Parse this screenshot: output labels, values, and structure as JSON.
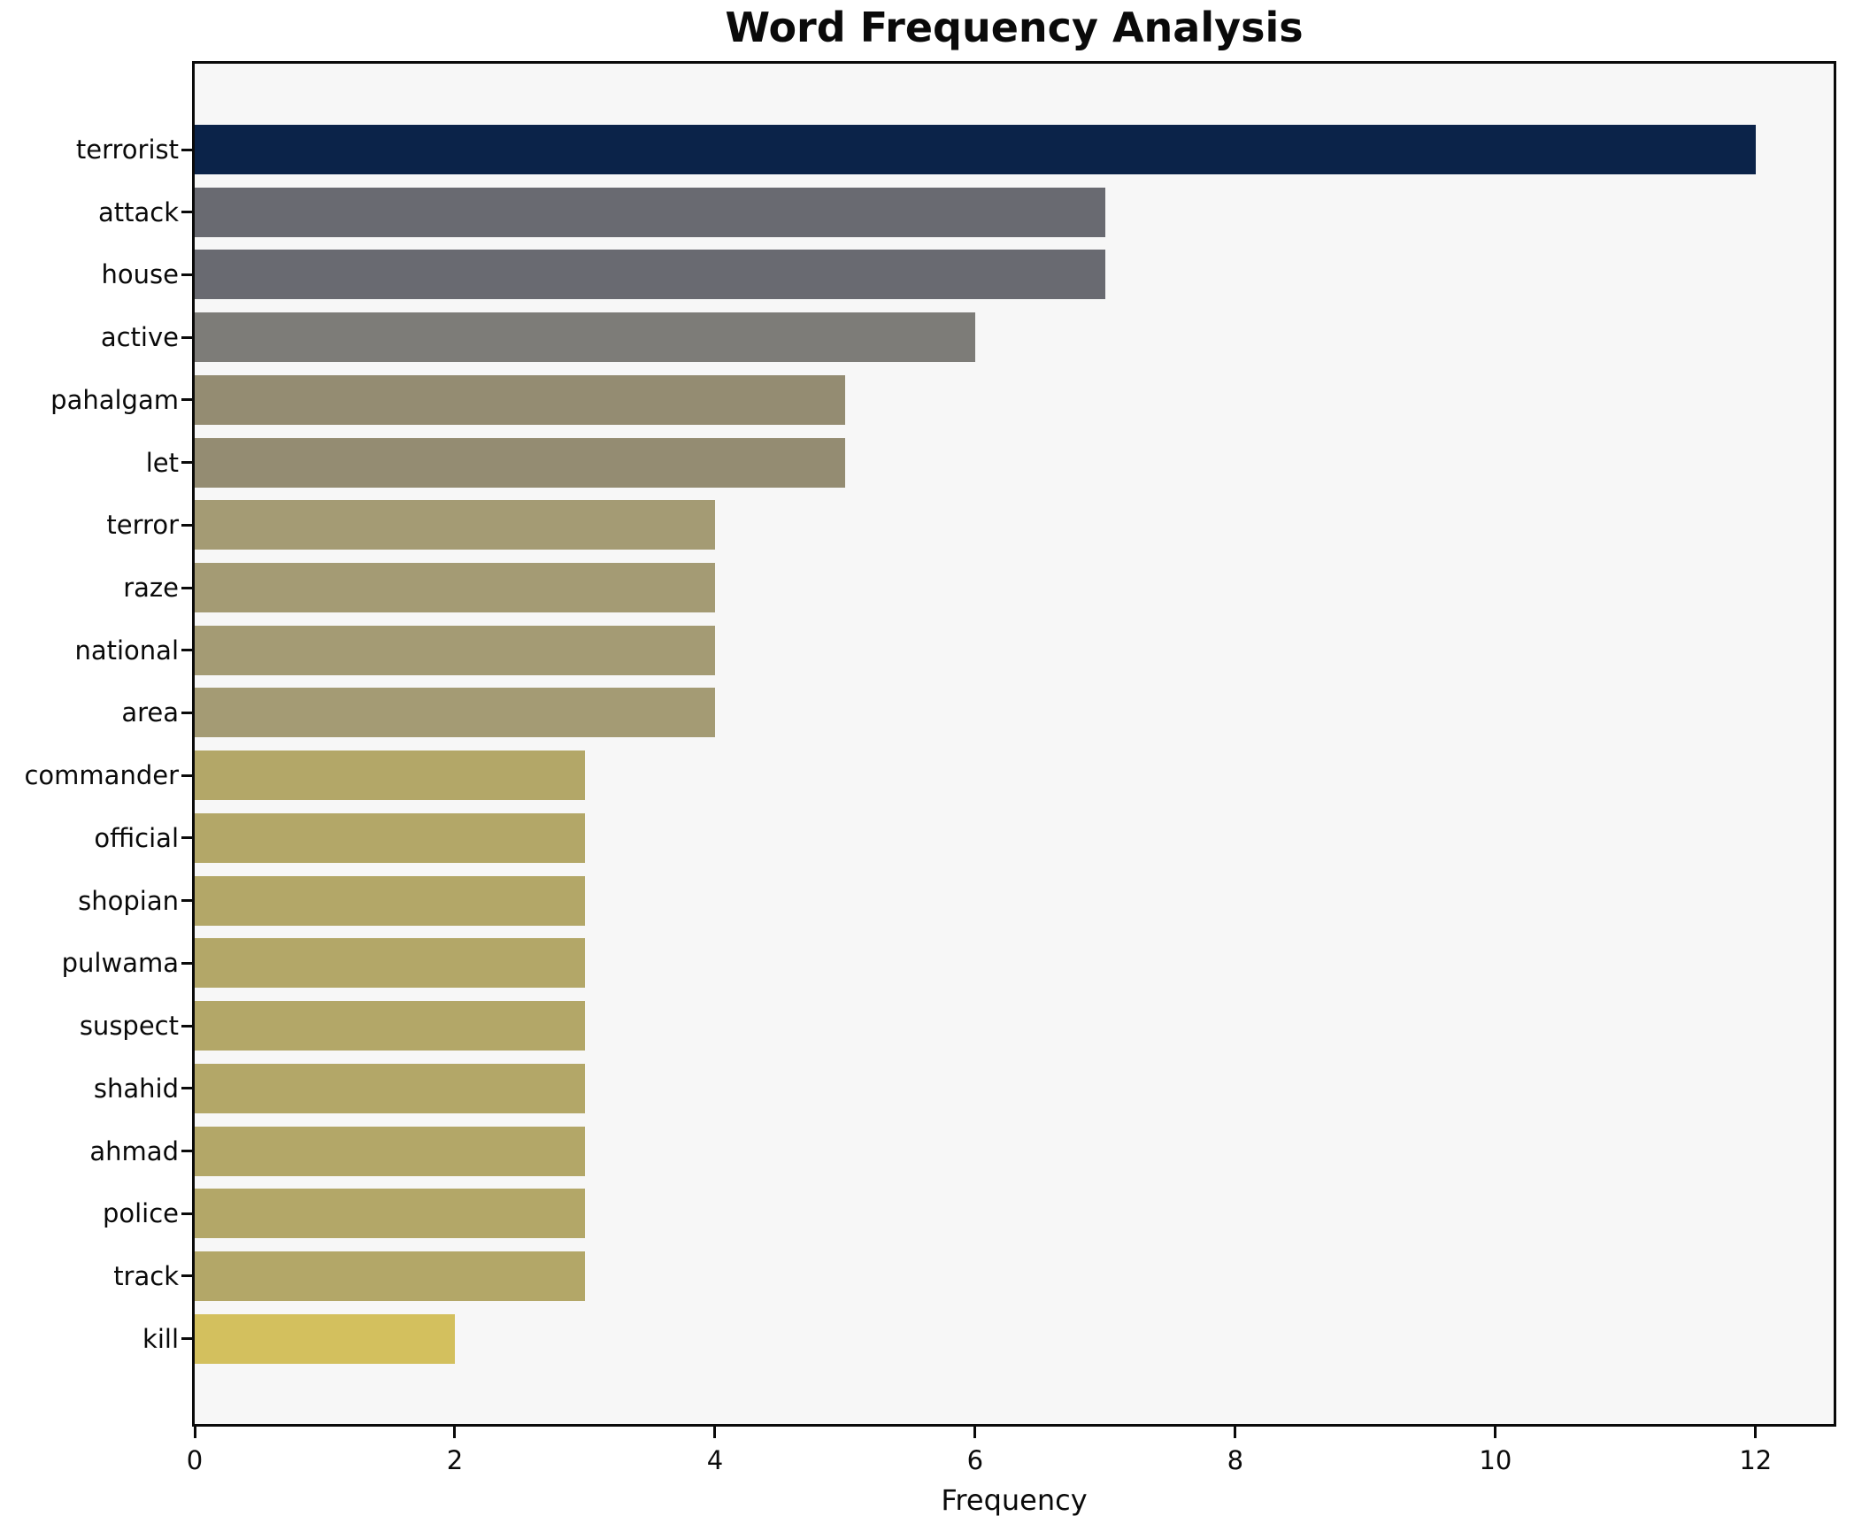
{
  "figure": {
    "background": "#ffffff"
  },
  "chart_data": {
    "type": "bar",
    "orientation": "horizontal",
    "title": "Word Frequency Analysis",
    "xlabel": "Frequency",
    "ylabel": "",
    "categories": [
      "terrorist",
      "attack",
      "house",
      "active",
      "pahalgam",
      "let",
      "terror",
      "raze",
      "national",
      "area",
      "commander",
      "official",
      "shopian",
      "pulwama",
      "suspect",
      "shahid",
      "ahmad",
      "police",
      "track",
      "kill"
    ],
    "values": [
      12,
      7,
      7,
      6,
      5,
      5,
      4,
      4,
      4,
      4,
      3,
      3,
      3,
      3,
      3,
      3,
      3,
      3,
      3,
      2
    ],
    "bar_colors": [
      "#0b2349",
      "#696a71",
      "#696a71",
      "#7d7c78",
      "#948c72",
      "#948c72",
      "#a49b74",
      "#a49b74",
      "#a49b74",
      "#a49b74",
      "#b3a768",
      "#b3a768",
      "#b3a768",
      "#b3a768",
      "#b3a768",
      "#b3a768",
      "#b3a768",
      "#b3a768",
      "#b3a768",
      "#d3c05e"
    ],
    "xlim": [
      0,
      12.6
    ],
    "xticks": [
      0,
      2,
      4,
      6,
      8,
      10,
      12
    ],
    "grid": false,
    "legend": null,
    "plot_background": "#f7f7f7",
    "axis_color": "#0a0a0a"
  }
}
